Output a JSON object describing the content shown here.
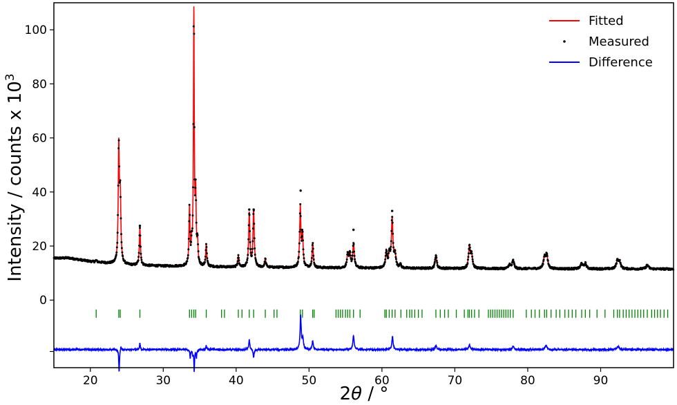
{
  "chart_data": {
    "type": "line",
    "xlabel_prefix": "2",
    "xlabel_symbol": "θ",
    "xlabel_suffix": " / °",
    "ylabel_main": "Intensity / counts x 10",
    "ylabel_sup": "3",
    "xlim": [
      15,
      100
    ],
    "ylim": [
      -25,
      110
    ],
    "x_ticks": [
      {
        "value": 20,
        "label": "20"
      },
      {
        "value": 30,
        "label": "30"
      },
      {
        "value": 40,
        "label": "40"
      },
      {
        "value": 50,
        "label": "50"
      },
      {
        "value": 60,
        "label": "60"
      },
      {
        "value": 70,
        "label": "70"
      },
      {
        "value": 80,
        "label": "80"
      },
      {
        "value": 90,
        "label": "90"
      }
    ],
    "y_ticks": [
      {
        "value": 0,
        "label": "0"
      },
      {
        "value": 20,
        "label": "20"
      },
      {
        "value": 40,
        "label": "40"
      },
      {
        "value": 60,
        "label": "60"
      },
      {
        "value": 80,
        "label": "80"
      },
      {
        "value": 100,
        "label": "100"
      }
    ],
    "difference_offset_tick": -19,
    "background": {
      "points": [
        [
          15,
          15.5
        ],
        [
          17,
          15.6
        ],
        [
          20,
          14.3
        ],
        [
          25,
          13
        ],
        [
          30,
          12.6
        ],
        [
          40,
          12.2
        ],
        [
          60,
          11.8
        ],
        [
          80,
          11.6
        ],
        [
          100,
          11.5
        ]
      ]
    },
    "peaks": [
      {
        "x": 20.8,
        "h": 0.6,
        "w": 0.1
      },
      {
        "x": 23.9,
        "h": 42,
        "w": 0.09
      },
      {
        "x": 24.1,
        "h": 24,
        "w": 0.1
      },
      {
        "x": 26.8,
        "h": 14,
        "w": 0.09
      },
      {
        "x": 33.6,
        "h": 21,
        "w": 0.08
      },
      {
        "x": 33.9,
        "h": 6,
        "w": 0.08
      },
      {
        "x": 34.2,
        "h": 93,
        "w": 0.07
      },
      {
        "x": 34.45,
        "h": 24,
        "w": 0.08
      },
      {
        "x": 34.7,
        "h": 8,
        "w": 0.08
      },
      {
        "x": 35.9,
        "h": 8,
        "w": 0.09
      },
      {
        "x": 40.3,
        "h": 4,
        "w": 0.1
      },
      {
        "x": 41.8,
        "h": 20,
        "w": 0.1
      },
      {
        "x": 42.4,
        "h": 21,
        "w": 0.1
      },
      {
        "x": 44.0,
        "h": 3,
        "w": 0.1
      },
      {
        "x": 48.8,
        "h": 22,
        "w": 0.1
      },
      {
        "x": 49.1,
        "h": 12,
        "w": 0.1
      },
      {
        "x": 50.5,
        "h": 9,
        "w": 0.1
      },
      {
        "x": 55.3,
        "h": 5,
        "w": 0.12
      },
      {
        "x": 55.6,
        "h": 5,
        "w": 0.12
      },
      {
        "x": 56.1,
        "h": 9,
        "w": 0.12
      },
      {
        "x": 60.6,
        "h": 6,
        "w": 0.12
      },
      {
        "x": 61.0,
        "h": 5,
        "w": 0.12
      },
      {
        "x": 61.4,
        "h": 18,
        "w": 0.13
      },
      {
        "x": 61.8,
        "h": 5,
        "w": 0.12
      },
      {
        "x": 62.5,
        "h": 1.5,
        "w": 0.12
      },
      {
        "x": 67.4,
        "h": 5,
        "w": 0.13
      },
      {
        "x": 72.0,
        "h": 8,
        "w": 0.14
      },
      {
        "x": 72.3,
        "h": 5,
        "w": 0.14
      },
      {
        "x": 77.5,
        "h": 1.5,
        "w": 0.15
      },
      {
        "x": 78.0,
        "h": 3,
        "w": 0.15
      },
      {
        "x": 82.3,
        "h": 4,
        "w": 0.16
      },
      {
        "x": 82.6,
        "h": 5,
        "w": 0.16
      },
      {
        "x": 87.4,
        "h": 2,
        "w": 0.16
      },
      {
        "x": 87.9,
        "h": 2,
        "w": 0.16
      },
      {
        "x": 92.3,
        "h": 3,
        "w": 0.17
      },
      {
        "x": 92.6,
        "h": 2.5,
        "w": 0.17
      },
      {
        "x": 96.4,
        "h": 1.5,
        "w": 0.18
      }
    ],
    "measured_highlights": [
      {
        "x": 48.85,
        "y": 40.5
      },
      {
        "x": 61.4,
        "y": 33
      },
      {
        "x": 56.1,
        "y": 26
      },
      {
        "x": 26.8,
        "y": 27.5
      },
      {
        "x": 41.8,
        "y": 33.5
      },
      {
        "x": 42.4,
        "y": 33.5
      }
    ],
    "difference_spikes": [
      {
        "x": 23.95,
        "v": -8,
        "w": 0.06
      },
      {
        "x": 24.2,
        "v": 1.5,
        "w": 0.06
      },
      {
        "x": 26.8,
        "v": 2.5,
        "w": 0.06
      },
      {
        "x": 33.7,
        "v": -3,
        "w": 0.06
      },
      {
        "x": 34.05,
        "v": -2,
        "w": 0.06
      },
      {
        "x": 34.25,
        "v": -8,
        "w": 0.05
      },
      {
        "x": 34.55,
        "v": -3,
        "w": 0.06
      },
      {
        "x": 35.9,
        "v": 1.5,
        "w": 0.07
      },
      {
        "x": 41.8,
        "v": 3.8,
        "w": 0.08
      },
      {
        "x": 42.4,
        "v": -3,
        "w": 0.08
      },
      {
        "x": 48.85,
        "v": 12.5,
        "w": 0.09
      },
      {
        "x": 49.15,
        "v": 4,
        "w": 0.1
      },
      {
        "x": 50.5,
        "v": 3.2,
        "w": 0.09
      },
      {
        "x": 56.1,
        "v": 5.3,
        "w": 0.1
      },
      {
        "x": 61.45,
        "v": 4.8,
        "w": 0.1
      },
      {
        "x": 67.4,
        "v": 1.5,
        "w": 0.12
      },
      {
        "x": 72.0,
        "v": 1.8,
        "w": 0.12
      },
      {
        "x": 78.0,
        "v": 1.2,
        "w": 0.13
      },
      {
        "x": 82.5,
        "v": 1.5,
        "w": 0.15
      },
      {
        "x": 92.4,
        "v": 1.2,
        "w": 0.15
      }
    ],
    "reflection_positions": [
      20.8,
      23.9,
      24.1,
      26.8,
      33.6,
      33.9,
      34.2,
      34.45,
      35.9,
      38.0,
      38.4,
      40.3,
      40.8,
      41.8,
      42.4,
      44.0,
      45.2,
      45.6,
      48.8,
      49.1,
      50.5,
      50.7,
      53.7,
      54.0,
      54.3,
      54.6,
      55.0,
      55.3,
      55.6,
      56.1,
      57.0,
      60.4,
      60.6,
      61.0,
      61.4,
      61.8,
      62.6,
      63.4,
      63.8,
      64.1,
      64.5,
      65.0,
      65.5,
      67.4,
      68.0,
      68.6,
      69.1,
      70.2,
      71.3,
      71.8,
      72.0,
      72.3,
      72.7,
      73.3,
      74.6,
      74.9,
      75.2,
      75.5,
      75.8,
      76.1,
      76.4,
      76.7,
      77.0,
      77.3,
      77.6,
      78.0,
      79.8,
      80.5,
      81.0,
      81.6,
      82.3,
      82.6,
      83.2,
      83.9,
      84.4,
      85.1,
      85.6,
      86.1,
      86.6,
      87.4,
      87.9,
      88.5,
      89.5,
      90.6,
      91.8,
      92.3,
      92.6,
      93.1,
      93.5,
      93.9,
      94.3,
      94.7,
      95.1,
      95.5,
      95.9,
      96.4,
      97.0,
      97.4,
      97.8,
      98.2,
      98.7,
      99.2
    ],
    "reflection_row_y": -5,
    "difference_baseline": -18.3,
    "series": [
      {
        "name": "Fitted",
        "color": "#ff0000",
        "style": "line"
      },
      {
        "name": "Measured",
        "color": "#000000",
        "style": "dots"
      },
      {
        "name": "Difference",
        "color": "#0000ff",
        "style": "line"
      }
    ],
    "reflection_color": "#008000",
    "grid": false,
    "legend_position": "top-right"
  }
}
